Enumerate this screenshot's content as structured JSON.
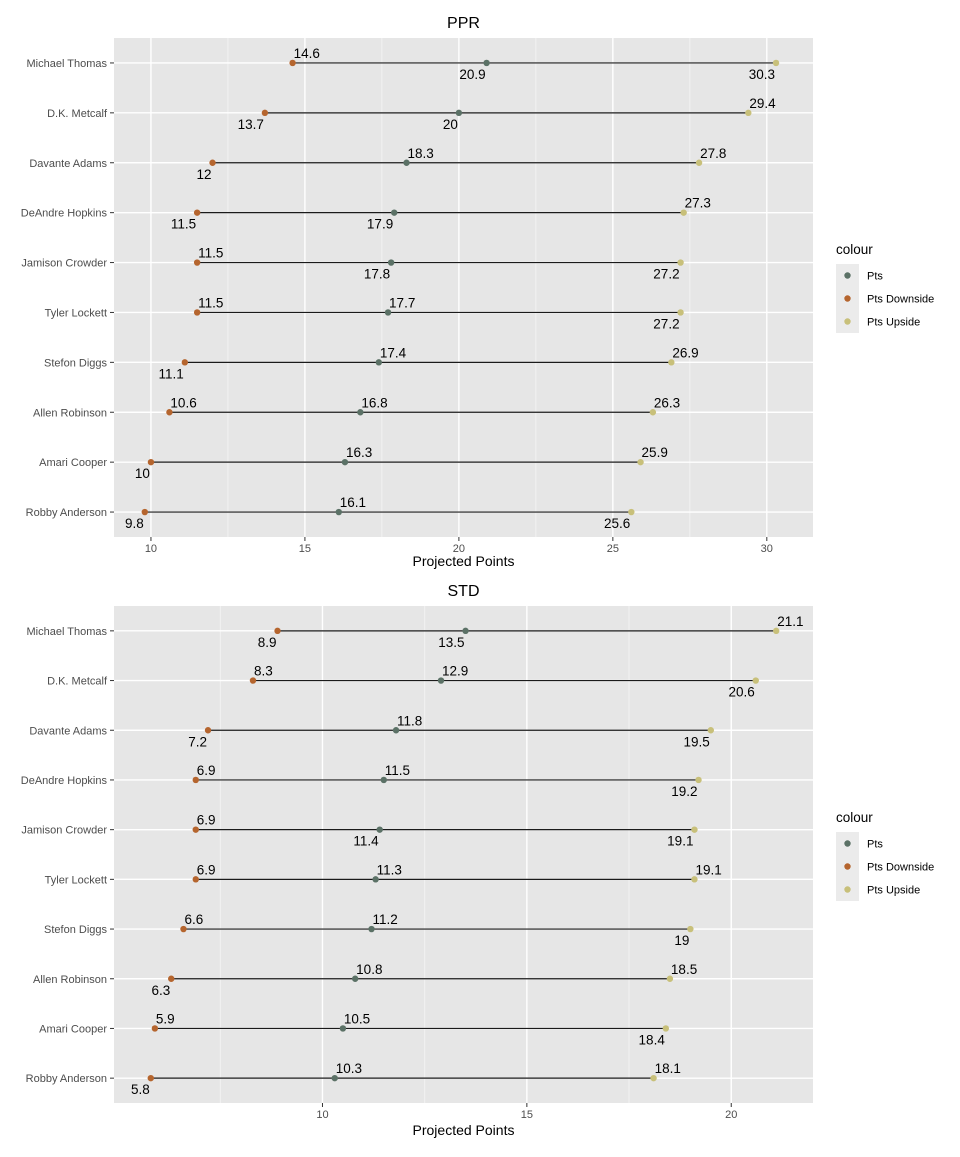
{
  "chart_data": [
    {
      "type": "dumbbell",
      "title": "PPR",
      "xlabel": "Projected Points",
      "ylabel": "",
      "xlim": [
        8.8,
        31.5
      ],
      "xticks": [
        10,
        15,
        20,
        25,
        30
      ],
      "grid": true,
      "legend": {
        "title": "colour",
        "position": "right",
        "entries": [
          "Pts",
          "Pts Downside",
          "Pts Upside"
        ]
      },
      "colors": {
        "Pts": "#5b7166",
        "Pts Downside": "#b5652e",
        "Pts Upside": "#c8c07a"
      },
      "categories": [
        "Michael Thomas",
        "D.K. Metcalf",
        "Davante Adams",
        "DeAndre Hopkins",
        "Jamison Crowder",
        "Tyler Lockett",
        "Stefon Diggs",
        "Allen Robinson",
        "Amari Cooper",
        "Robby Anderson"
      ],
      "series": [
        {
          "name": "Pts Downside",
          "values": [
            14.6,
            13.7,
            12,
            11.5,
            11.5,
            11.5,
            11.1,
            10.6,
            10,
            9.8
          ],
          "labels": [
            "14.6",
            "13.7",
            "12",
            "11.5",
            "11.5",
            "11.5",
            "11.1",
            "10.6",
            "10",
            "9.8"
          ]
        },
        {
          "name": "Pts",
          "values": [
            20.9,
            20,
            18.3,
            17.9,
            17.8,
            17.7,
            17.4,
            16.8,
            16.3,
            16.1
          ],
          "labels": [
            "20.9",
            "20",
            "18.3",
            "17.9",
            "17.8",
            "17.7",
            "17.4",
            "16.8",
            "16.3",
            "16.1"
          ]
        },
        {
          "name": "Pts Upside",
          "values": [
            30.3,
            29.4,
            27.8,
            27.3,
            27.2,
            27.2,
            26.9,
            26.3,
            25.9,
            25.6
          ],
          "labels": [
            "30.3",
            "29.4",
            "27.8",
            "27.3",
            "27.2",
            "27.2",
            "26.9",
            "26.3",
            "25.9",
            "25.6"
          ]
        }
      ]
    },
    {
      "type": "dumbbell",
      "title": "STD",
      "xlabel": "Projected Points",
      "ylabel": "",
      "xlim": [
        4.9,
        22.0
      ],
      "xticks": [
        10,
        15,
        20
      ],
      "grid": true,
      "legend": {
        "title": "colour",
        "position": "right",
        "entries": [
          "Pts",
          "Pts Downside",
          "Pts Upside"
        ]
      },
      "colors": {
        "Pts": "#5b7166",
        "Pts Downside": "#b5652e",
        "Pts Upside": "#c8c07a"
      },
      "categories": [
        "Michael Thomas",
        "D.K. Metcalf",
        "Davante Adams",
        "DeAndre Hopkins",
        "Jamison Crowder",
        "Tyler Lockett",
        "Stefon Diggs",
        "Allen Robinson",
        "Amari Cooper",
        "Robby Anderson"
      ],
      "series": [
        {
          "name": "Pts Downside",
          "values": [
            8.9,
            8.3,
            7.2,
            6.9,
            6.9,
            6.9,
            6.6,
            6.3,
            5.9,
            5.8
          ],
          "labels": [
            "8.9",
            "8.3",
            "7.2",
            "6.9",
            "6.9",
            "6.9",
            "6.6",
            "6.3",
            "5.9",
            "5.8"
          ]
        },
        {
          "name": "Pts",
          "values": [
            13.5,
            12.9,
            11.8,
            11.5,
            11.4,
            11.3,
            11.2,
            10.8,
            10.5,
            10.3
          ],
          "labels": [
            "13.5",
            "12.9",
            "11.8",
            "11.5",
            "11.4",
            "11.3",
            "11.2",
            "10.8",
            "10.5",
            "10.3"
          ]
        },
        {
          "name": "Pts Upside",
          "values": [
            21.1,
            20.6,
            19.5,
            19.2,
            19.1,
            19.1,
            19,
            18.5,
            18.4,
            18.1
          ],
          "labels": [
            "21.1",
            "20.6",
            "19.5",
            "19.2",
            "19.1",
            "19.1",
            "19",
            "18.5",
            "18.4",
            "18.1"
          ]
        }
      ]
    }
  ]
}
